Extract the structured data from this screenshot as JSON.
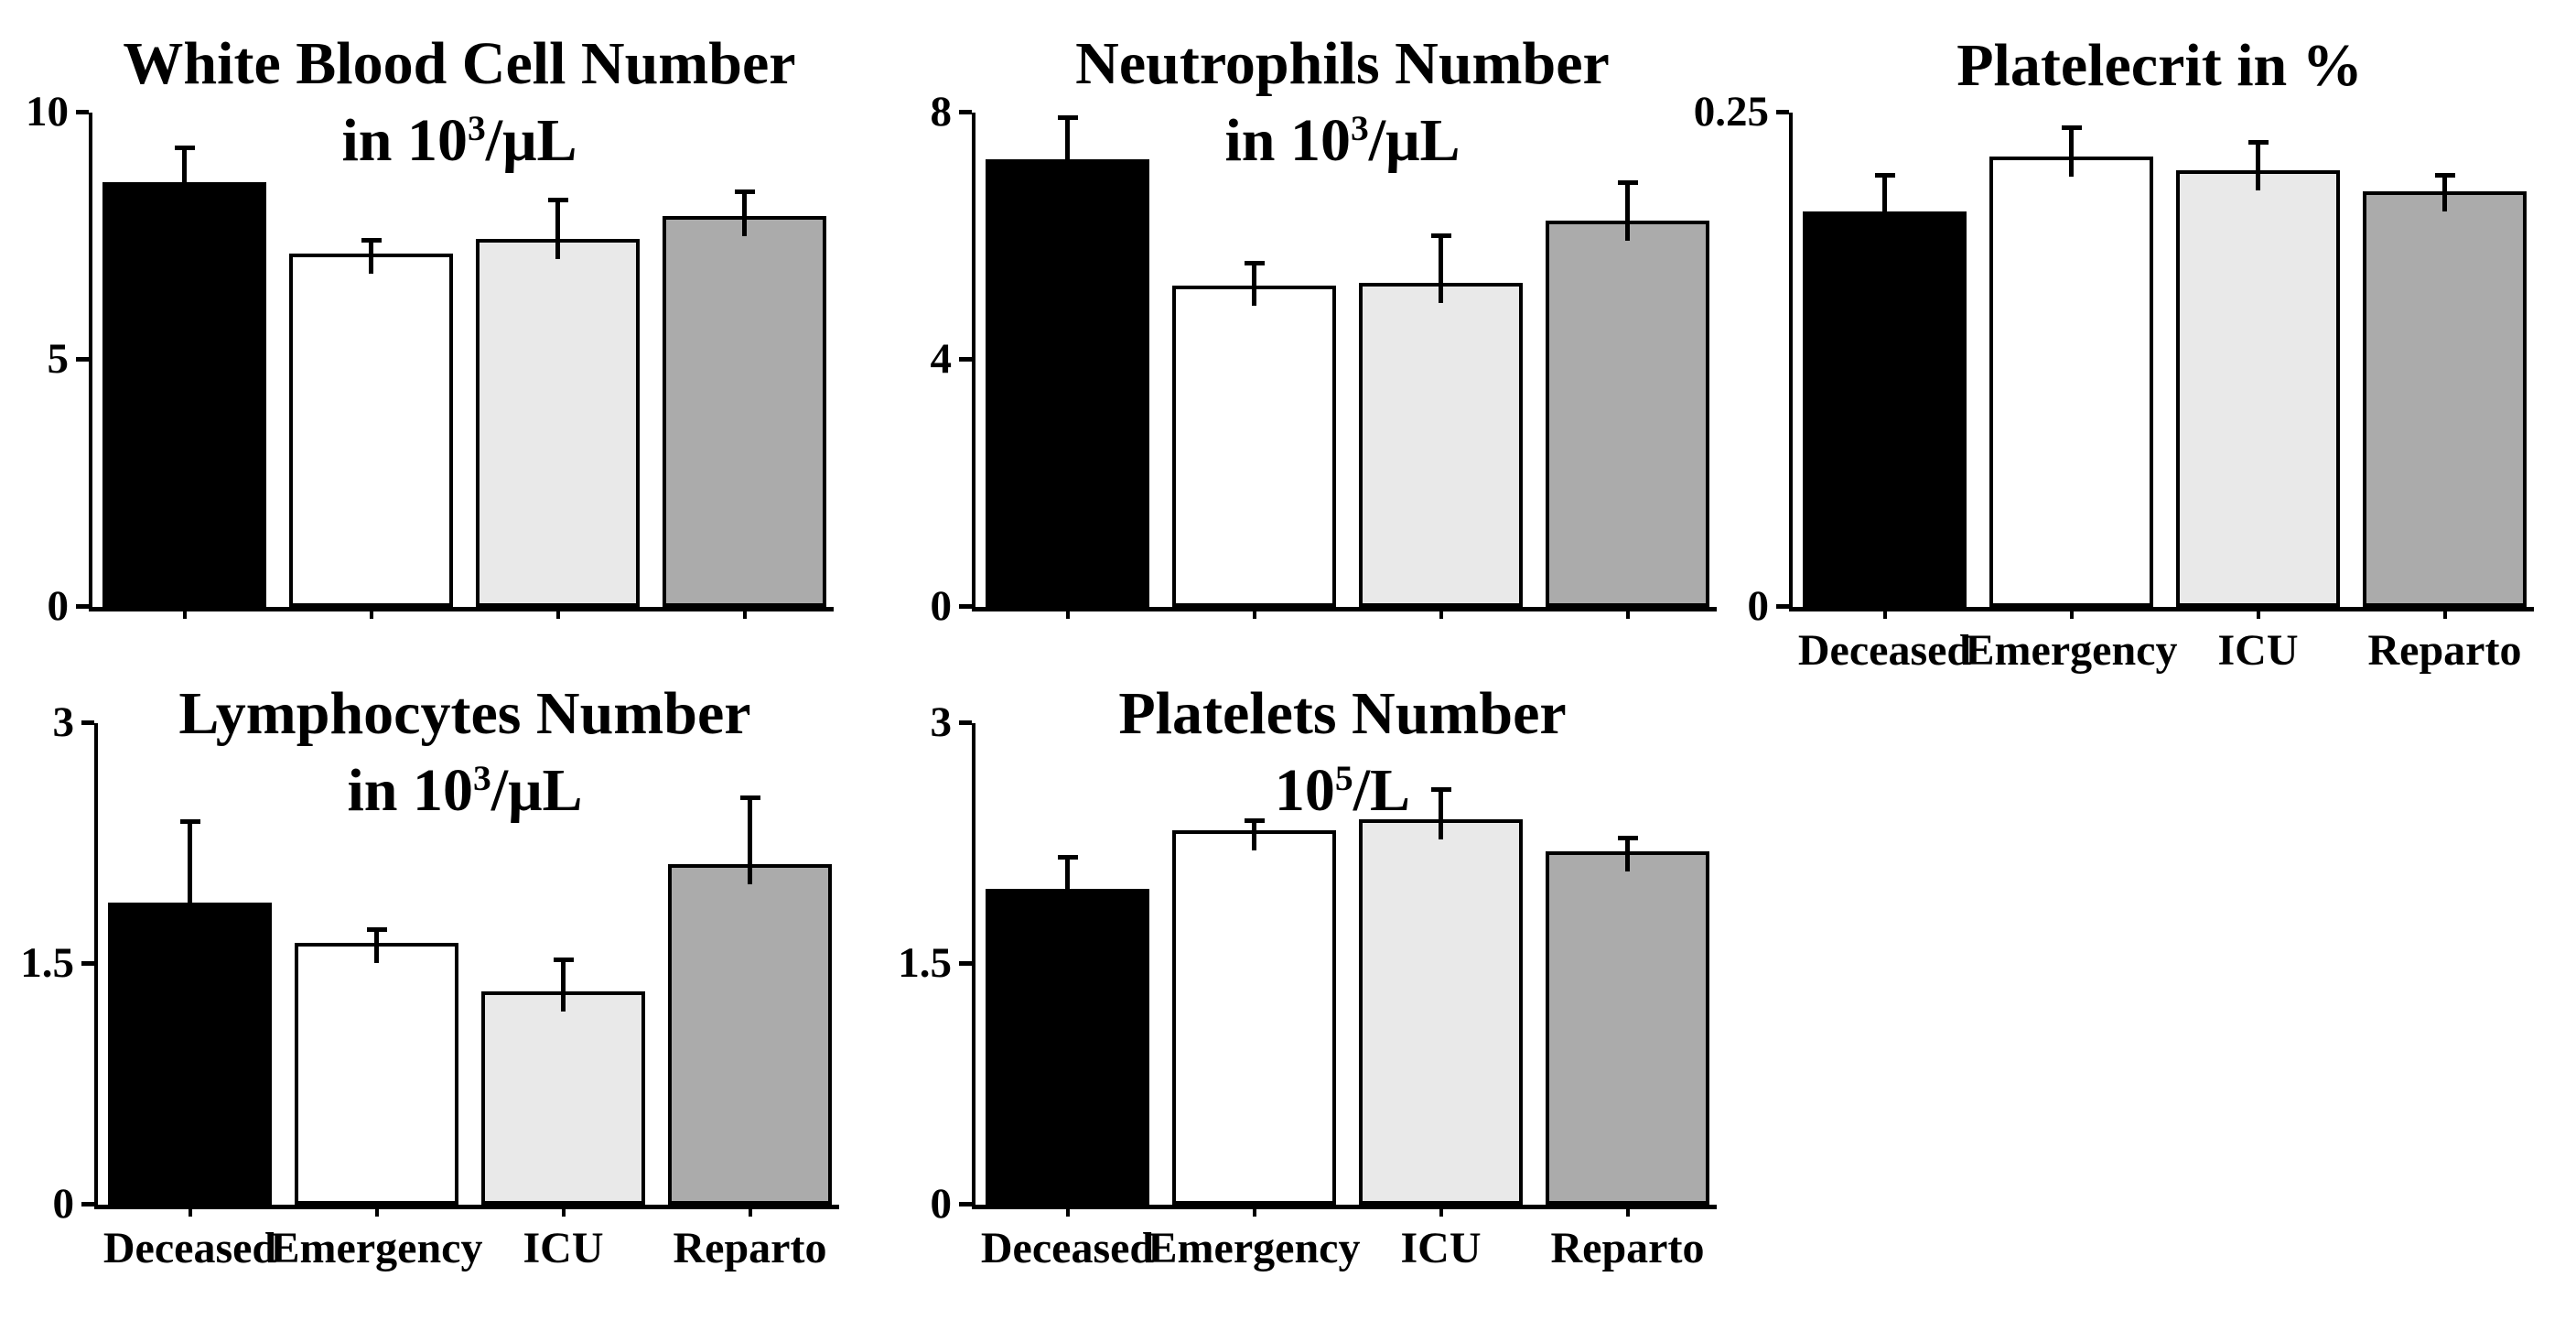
{
  "figure": {
    "background": "#ffffff",
    "bar_fill_colors": [
      "#000000",
      "#ffffff",
      "#e9e9e9",
      "#ababab"
    ],
    "bar_border_color": "#000000",
    "axis_color": "#000000",
    "group_labels": [
      "Deceased",
      "Emergency",
      "ICU",
      "Reparto"
    ]
  },
  "chart_data": [
    {
      "id": "white-blood-cell",
      "type": "bar",
      "title_lines": [
        "White Blood Cell Number",
        "in 10^3/μL"
      ],
      "categories": [
        "Deceased",
        "Emergency",
        "ICU",
        "Reparto"
      ],
      "values": [
        8.6,
        7.15,
        7.45,
        7.9
      ],
      "errors": [
        0.65,
        0.22,
        0.74,
        0.45
      ],
      "ylim": [
        0,
        10
      ],
      "yticks": [
        0,
        5,
        10
      ],
      "ytick_labels": [
        "0",
        "5",
        "10"
      ],
      "show_xlabels": false,
      "legend": "none",
      "grid": false
    },
    {
      "id": "neutrophils",
      "type": "bar",
      "title_lines": [
        "Neutrophils Number",
        "in 10^3/μL"
      ],
      "categories": [
        "Deceased",
        "Emergency",
        "ICU",
        "Reparto"
      ],
      "values": [
        7.25,
        5.2,
        5.25,
        6.25
      ],
      "errors": [
        0.63,
        0.33,
        0.72,
        0.58
      ],
      "ylim": [
        0,
        8
      ],
      "yticks": [
        0,
        4,
        8
      ],
      "ytick_labels": [
        "0",
        "4",
        "8"
      ],
      "show_xlabels": false,
      "legend": "none",
      "grid": false
    },
    {
      "id": "platelecrit",
      "type": "bar",
      "title_lines": [
        "Platelecrit in %"
      ],
      "categories": [
        "Deceased",
        "Emergency",
        "ICU",
        "Reparto"
      ],
      "values": [
        0.2,
        0.228,
        0.221,
        0.21
      ],
      "errors": [
        0.017,
        0.013,
        0.013,
        0.007
      ],
      "ylim": [
        0,
        0.25
      ],
      "yticks": [
        0,
        0.25
      ],
      "ytick_labels": [
        "0",
        "0.25"
      ],
      "show_xlabels": true,
      "legend": "none",
      "grid": false
    },
    {
      "id": "lymphocytes",
      "type": "bar",
      "title_lines": [
        "Lymphocytes Number",
        "in 10^3/μL"
      ],
      "categories": [
        "Deceased",
        "Emergency",
        "ICU",
        "Reparto"
      ],
      "values": [
        1.88,
        1.63,
        1.33,
        2.12
      ],
      "errors": [
        0.49,
        0.07,
        0.18,
        0.4
      ],
      "ylim": [
        0,
        3
      ],
      "yticks": [
        0,
        1.5,
        3
      ],
      "ytick_labels": [
        "0",
        "1.5",
        "3"
      ],
      "show_xlabels": true,
      "legend": "none",
      "grid": false
    },
    {
      "id": "platelets",
      "type": "bar",
      "title_lines": [
        "Platelets Number",
        "10^5/L"
      ],
      "categories": [
        "Deceased",
        "Emergency",
        "ICU",
        "Reparto"
      ],
      "values": [
        1.97,
        2.33,
        2.4,
        2.2
      ],
      "errors": [
        0.18,
        0.05,
        0.17,
        0.07
      ],
      "ylim": [
        0,
        3
      ],
      "yticks": [
        0,
        1.5,
        3
      ],
      "ytick_labels": [
        "0",
        "1.5",
        "3"
      ],
      "show_xlabels": true,
      "legend": "none",
      "grid": false
    }
  ]
}
